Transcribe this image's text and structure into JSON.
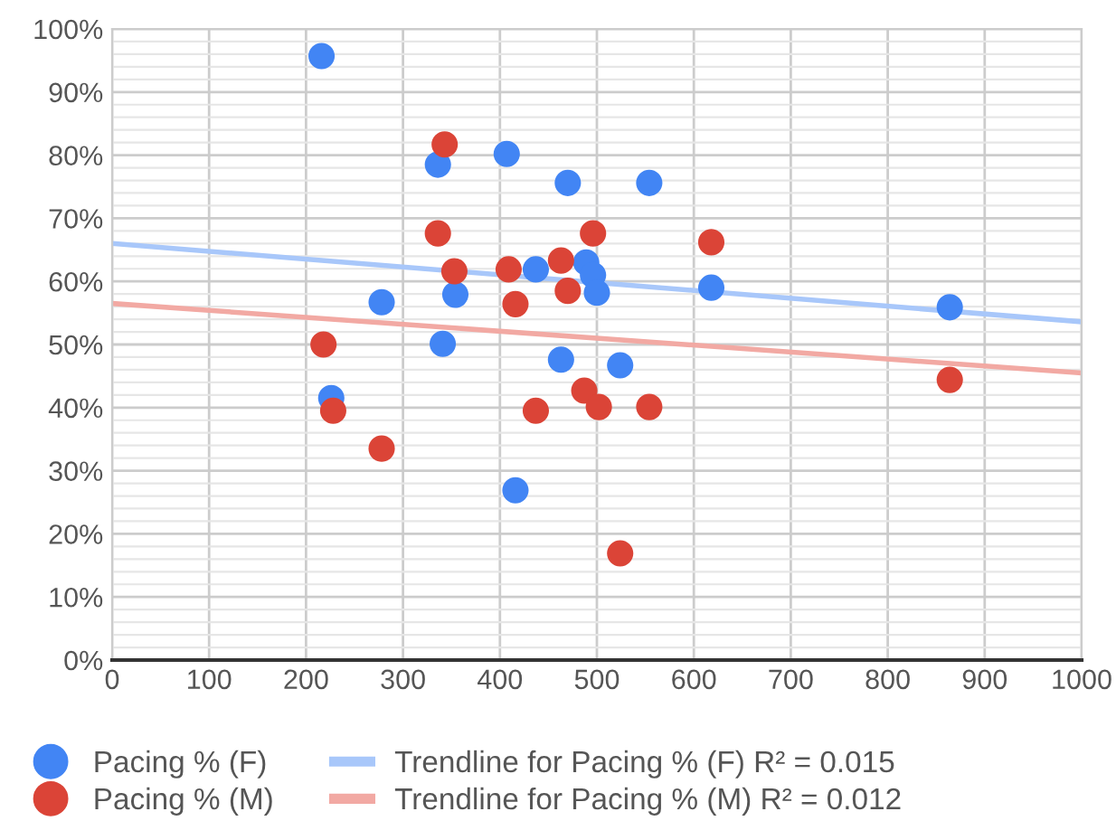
{
  "chart_data": {
    "type": "scatter",
    "grid": true,
    "legend": "bottom",
    "xlim": [
      0,
      1000
    ],
    "xticks": [
      0,
      100,
      200,
      300,
      400,
      500,
      600,
      700,
      800,
      900,
      1000
    ],
    "ylim": [
      0,
      100
    ],
    "yticks": [
      {
        "value": 0,
        "label": "0%"
      },
      {
        "value": 10,
        "label": "10%"
      },
      {
        "value": 20,
        "label": "20%"
      },
      {
        "value": 30,
        "label": "30%"
      },
      {
        "value": 40,
        "label": "40%"
      },
      {
        "value": 50,
        "label": "50%"
      },
      {
        "value": 60,
        "label": "60%"
      },
      {
        "value": 70,
        "label": "70%"
      },
      {
        "value": 80,
        "label": "80%"
      },
      {
        "value": 90,
        "label": "90%"
      },
      {
        "value": 100,
        "label": "100%"
      }
    ],
    "series": [
      {
        "name": "Pacing % (F)",
        "marker": "circle",
        "color": "#4285f4",
        "x": [
          216,
          336,
          407,
          470,
          554,
          437,
          489,
          496,
          500,
          354,
          278,
          618,
          341,
          226,
          463,
          524,
          416,
          864
        ],
        "values": [
          95.7,
          78.5,
          80.2,
          75.6,
          75.6,
          61.9,
          63,
          61,
          58.2,
          57.9,
          56.7,
          59,
          50.1,
          41.5,
          47.6,
          46.7,
          26.9,
          55.9
        ]
      },
      {
        "name": "Pacing % (M)",
        "marker": "circle",
        "color": "#db4437",
        "x": [
          343,
          336,
          496,
          618,
          353,
          409,
          463,
          470,
          416,
          218,
          228,
          278,
          437,
          487,
          502,
          554,
          524,
          864
        ],
        "values": [
          81.7,
          67.6,
          67.6,
          66.2,
          61.6,
          61.9,
          63.3,
          58.5,
          56.4,
          50,
          39.5,
          33.5,
          39.5,
          42.7,
          40.1,
          40.1,
          16.9,
          44.4
        ]
      },
      {
        "name": "Trendline for Pacing % (F) R² = 0.015",
        "type": "line",
        "color": "#a8c7fa",
        "x": [
          0,
          1000
        ],
        "values": [
          66,
          53.6
        ]
      },
      {
        "name": "Trendline for Pacing % (M) R² = 0.012",
        "type": "line",
        "color": "#f2a9a3",
        "x": [
          0,
          1000
        ],
        "values": [
          56.5,
          45.5
        ]
      }
    ]
  }
}
